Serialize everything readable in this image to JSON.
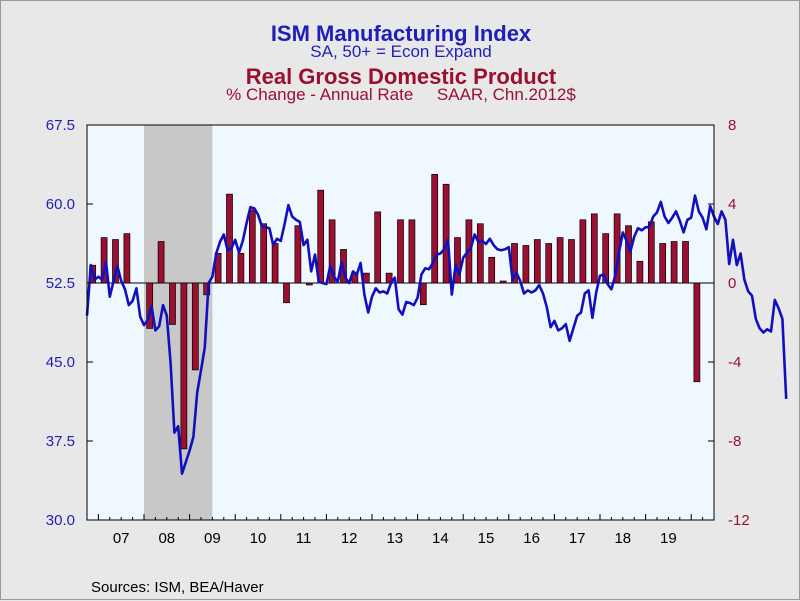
{
  "chart_data": {
    "type": "bar+line",
    "title": "ISM Manufacturing Index",
    "subtitle": "SA, 50+ = Econ Expand",
    "title2": "Real Gross Domestic Product",
    "subtitle2": "% Change - Annual Rate     SAAR, Chn.2012$",
    "left_axis": {
      "ylim": [
        30.0,
        67.5
      ],
      "ticks": [
        "67.5",
        "60.0",
        "52.5",
        "45.0",
        "37.5",
        "30.0"
      ]
    },
    "right_axis": {
      "ylim": [
        -12,
        8
      ],
      "ticks": [
        "8",
        "4",
        "0",
        "-4",
        "-8",
        "-12"
      ]
    },
    "x_axis": {
      "range": [
        2006.75,
        2020.5
      ],
      "categories": [
        "07",
        "08",
        "09",
        "10",
        "11",
        "12",
        "13",
        "14",
        "15",
        "16",
        "17",
        "18",
        "19"
      ]
    },
    "recession": {
      "start": 2008.0,
      "end": 2009.5
    },
    "colors": {
      "ism_line": "#1010c0",
      "gdp_bars": "#9b1030",
      "plot_bg": "#f0f8ff",
      "recession": "#c8c8c8",
      "outer_bg": "#e8e8e8"
    },
    "series": [
      {
        "name": "ISM Manufacturing Index",
        "axis": "left",
        "x_start": 2006.75,
        "x_step": 0.083333,
        "values": [
          49.4,
          54.2,
          52.8,
          53.1,
          52.8,
          54.5,
          51.2,
          52.7,
          54.1,
          52.7,
          51.9,
          50.4,
          50.8,
          52.0,
          49.3,
          48.5,
          49.0,
          50.3,
          48.0,
          48.4,
          50.4,
          49.4,
          44.9,
          38.3,
          38.9,
          34.4,
          35.5,
          36.6,
          37.9,
          42.1,
          44.2,
          46.4,
          52.5,
          53.1,
          55.3,
          56.4,
          57.1,
          55.6,
          55.8,
          56.6,
          55.4,
          56.5,
          58.2,
          59.7,
          59.6,
          59.0,
          57.9,
          57.8,
          57.7,
          56.1,
          56.7,
          56.5,
          58.1,
          59.9,
          58.8,
          58.5,
          58.3,
          56.1,
          56.6,
          53.6,
          55.2,
          52.6,
          52.5,
          52.4,
          54.1,
          53.1,
          52.6,
          54.5,
          53.0,
          52.5,
          53.6,
          53.3,
          54.4,
          51.4,
          49.7,
          51.2,
          52.0,
          51.6,
          51.7,
          51.5,
          52.5,
          53.0,
          50.0,
          49.5,
          50.7,
          50.6,
          50.4,
          51.1,
          53.3,
          53.9,
          53.8,
          54.4,
          55.2,
          55.3,
          55.7,
          56.6,
          51.4,
          54.2,
          53.3,
          54.9,
          55.4,
          55.8,
          57.1,
          56.4,
          56.5,
          56.2,
          56.7,
          56.1,
          55.7,
          55.6,
          55.7,
          55.9,
          52.8,
          53.5,
          52.7,
          51.5,
          51.8,
          51.6,
          51.8,
          52.3,
          51.5,
          50.2,
          48.3,
          48.9,
          48.0,
          48.2,
          48.6,
          47.0,
          48.2,
          49.4,
          49.7,
          51.5,
          51.8,
          49.2,
          51.6,
          53.2,
          53.3,
          52.4,
          51.9,
          53.2,
          55.4,
          57.3,
          56.5,
          55.5,
          56.9,
          57.7,
          57.5,
          57.8,
          57.8,
          58.8,
          59.2,
          60.2,
          58.8,
          58.2,
          58.7,
          59.3,
          58.4,
          57.3,
          58.5,
          58.7,
          60.8,
          59.3,
          58.7,
          57.6,
          59.8,
          58.8,
          58.1,
          59.3,
          58.5,
          54.3,
          56.6,
          54.2,
          55.3,
          52.8,
          51.7,
          51.3,
          49.1,
          48.2,
          47.8,
          48.1,
          47.9,
          50.9,
          50.1,
          49.1,
          41.5
        ]
      },
      {
        "name": "Real Gross Domestic Product",
        "axis": "right",
        "quarters": [
          "2006Q4",
          "2007Q1",
          "2007Q2",
          "2007Q3",
          "2007Q4",
          "2008Q1",
          "2008Q2",
          "2008Q3",
          "2008Q4",
          "2009Q1",
          "2009Q2",
          "2009Q3",
          "2009Q4",
          "2010Q1",
          "2010Q2",
          "2010Q3",
          "2010Q4",
          "2011Q1",
          "2011Q2",
          "2011Q3",
          "2011Q4",
          "2012Q1",
          "2012Q2",
          "2012Q3",
          "2012Q4",
          "2013Q1",
          "2013Q2",
          "2013Q3",
          "2013Q4",
          "2014Q1",
          "2014Q2",
          "2014Q3",
          "2014Q4",
          "2015Q1",
          "2015Q2",
          "2015Q3",
          "2015Q4",
          "2016Q1",
          "2016Q2",
          "2016Q3",
          "2016Q4",
          "2017Q1",
          "2017Q2",
          "2017Q3",
          "2017Q4",
          "2018Q1",
          "2018Q2",
          "2018Q3",
          "2018Q4",
          "2019Q1",
          "2019Q2",
          "2019Q3",
          "2019Q4",
          "2020Q1",
          "2020Q2"
        ],
        "values": [
          0.9,
          2.3,
          2.2,
          2.5,
          0.0,
          -2.3,
          2.1,
          -2.1,
          -8.4,
          -4.4,
          -0.6,
          1.5,
          4.5,
          1.5,
          3.7,
          3.0,
          2.0,
          -1.0,
          2.9,
          -0.1,
          4.7,
          3.2,
          1.7,
          0.5,
          0.5,
          3.6,
          0.5,
          3.2,
          3.2,
          -1.1,
          5.5,
          5.0,
          2.3,
          3.2,
          3.0,
          1.3,
          0.1,
          2.0,
          1.9,
          2.2,
          2.0,
          2.3,
          2.2,
          3.2,
          3.5,
          2.5,
          3.5,
          2.9,
          1.1,
          3.1,
          2.0,
          2.1,
          2.1,
          -5.0,
          0.0
        ]
      }
    ]
  },
  "source": "Sources:  ISM, BEA/Haver"
}
